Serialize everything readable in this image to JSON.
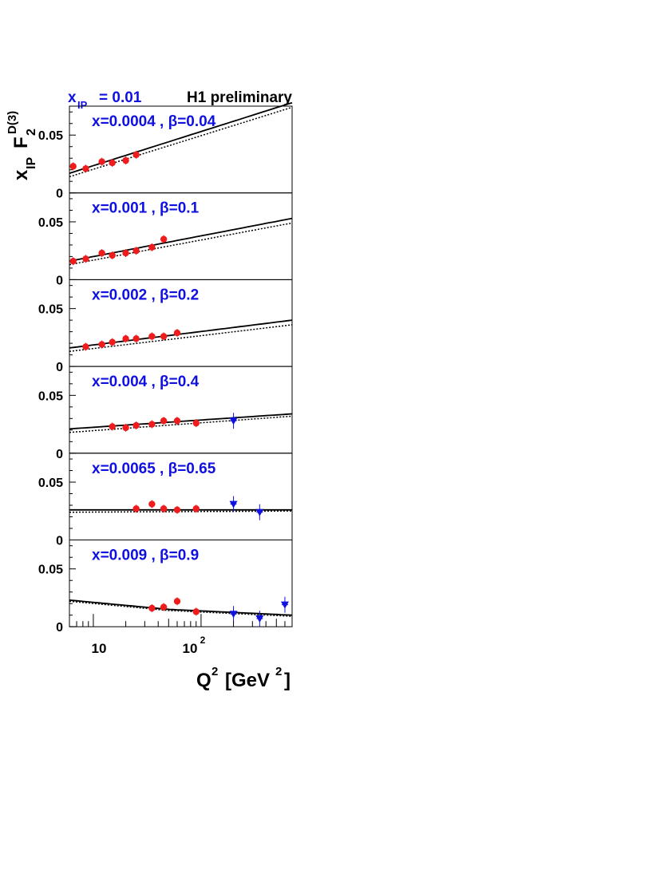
{
  "figure": {
    "header_left": "x",
    "header_left_sub": "IP",
    "header_left_value": "= 0.01",
    "header_right": "H1 preliminary",
    "ylabel_x": "x",
    "ylabel_x_sub": "IP",
    "ylabel_f": "F",
    "ylabel_f_sub": "2",
    "ylabel_f_sup": "D(3)",
    "xlabel_q": "Q",
    "xlabel_q_sup": "2",
    "xlabel_units_open": "[GeV",
    "xlabel_units_sup": "2",
    "xlabel_units_close": "]"
  },
  "colors": {
    "h1_data": "#ee1c1c",
    "other_data": "#1010e0",
    "label": "#1010e0",
    "fit": "#000000"
  },
  "chart_data": {
    "type": "scatter",
    "x_scale": "log",
    "xlim": [
      6,
      700
    ],
    "ylim": [
      0,
      0.075
    ],
    "y_ticks": [
      0,
      0.05
    ],
    "y_tick_labels": [
      "0",
      "0.05"
    ],
    "x_tick_labels": [
      "10",
      "10^2"
    ],
    "panels": [
      {
        "label": "x=0.0004 , β=0.04",
        "solid": [
          [
            6,
            0.017
          ],
          [
            700,
            0.078
          ]
        ],
        "dotted": [
          [
            6,
            0.014
          ],
          [
            700,
            0.074
          ]
        ],
        "points_red": [
          [
            6.5,
            0.023
          ],
          [
            8.5,
            0.021
          ],
          [
            12,
            0.027
          ],
          [
            15,
            0.026
          ],
          [
            20,
            0.028
          ],
          [
            25,
            0.033
          ]
        ],
        "points_blue": []
      },
      {
        "label": "x=0.001 , β=0.1",
        "solid": [
          [
            6,
            0.016
          ],
          [
            700,
            0.053
          ]
        ],
        "dotted": [
          [
            6,
            0.013
          ],
          [
            700,
            0.049
          ]
        ],
        "points_red": [
          [
            6.5,
            0.016
          ],
          [
            8.5,
            0.018
          ],
          [
            12,
            0.023
          ],
          [
            15,
            0.021
          ],
          [
            20,
            0.023
          ],
          [
            25,
            0.025
          ],
          [
            35,
            0.028
          ],
          [
            45,
            0.035
          ]
        ],
        "points_blue": []
      },
      {
        "label": "x=0.002 , β=0.2",
        "solid": [
          [
            6,
            0.016
          ],
          [
            700,
            0.04
          ]
        ],
        "dotted": [
          [
            6,
            0.013
          ],
          [
            700,
            0.036
          ]
        ],
        "points_red": [
          [
            8.5,
            0.017
          ],
          [
            12,
            0.019
          ],
          [
            15,
            0.021
          ],
          [
            20,
            0.024
          ],
          [
            25,
            0.024
          ],
          [
            35,
            0.026
          ],
          [
            45,
            0.026
          ],
          [
            60,
            0.029
          ]
        ],
        "points_blue": []
      },
      {
        "label": "x=0.004 , β=0.4",
        "solid": [
          [
            6,
            0.021
          ],
          [
            700,
            0.034
          ]
        ],
        "dotted": [
          [
            6,
            0.018
          ],
          [
            700,
            0.032
          ]
        ],
        "points_red": [
          [
            15,
            0.023
          ],
          [
            20,
            0.022
          ],
          [
            25,
            0.024
          ],
          [
            35,
            0.025
          ],
          [
            45,
            0.028
          ],
          [
            60,
            0.028
          ],
          [
            90,
            0.026
          ]
        ],
        "points_blue": [
          [
            200,
            0.028
          ]
        ]
      },
      {
        "label": "x=0.0065 , β=0.65",
        "solid": [
          [
            6,
            0.026
          ],
          [
            700,
            0.026
          ]
        ],
        "dotted": [
          [
            6,
            0.024
          ],
          [
            700,
            0.025
          ]
        ],
        "points_red": [
          [
            25,
            0.027
          ],
          [
            35,
            0.031
          ],
          [
            45,
            0.027
          ],
          [
            60,
            0.026
          ],
          [
            90,
            0.027
          ]
        ],
        "points_blue": [
          [
            200,
            0.031
          ],
          [
            350,
            0.024
          ]
        ]
      },
      {
        "label": "x=0.009 , β=0.9",
        "solid": [
          [
            6,
            0.023
          ],
          [
            50,
            0.015
          ],
          [
            700,
            0.01
          ]
        ],
        "dotted": [
          [
            6,
            0.022
          ],
          [
            50,
            0.014
          ],
          [
            700,
            0.009
          ]
        ],
        "points_red": [
          [
            35,
            0.016
          ],
          [
            45,
            0.017
          ],
          [
            60,
            0.022
          ],
          [
            90,
            0.013
          ]
        ],
        "points_blue": [
          [
            200,
            0.011
          ],
          [
            350,
            0.007
          ],
          [
            600,
            0.019
          ]
        ]
      }
    ]
  }
}
